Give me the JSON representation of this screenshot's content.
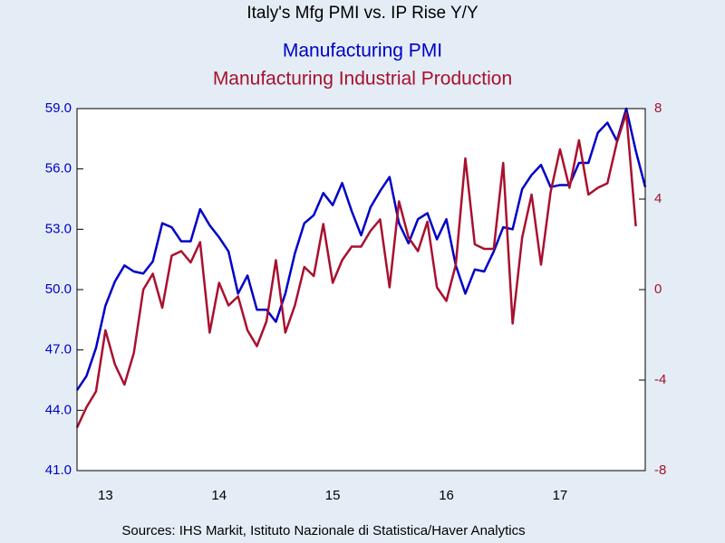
{
  "chart_data": {
    "type": "line",
    "title": "Italy's Mfg PMI vs. IP Rise Y/Y",
    "source": "Sources:  IHS Markit, Istituto Nazionale di Statistica/Haver Analytics",
    "x": [
      2013.25,
      2013.333,
      2013.417,
      2013.5,
      2013.583,
      2013.667,
      2013.75,
      2013.833,
      2013.917,
      2014,
      2014.083,
      2014.167,
      2014.25,
      2014.333,
      2014.417,
      2014.5,
      2014.583,
      2014.667,
      2014.75,
      2014.833,
      2014.917,
      2015,
      2015.083,
      2015.167,
      2015.25,
      2015.333,
      2015.417,
      2015.5,
      2015.583,
      2015.667,
      2015.75,
      2015.833,
      2015.917,
      2016,
      2016.083,
      2016.167,
      2016.25,
      2016.333,
      2016.417,
      2016.5,
      2016.583,
      2016.667,
      2016.75,
      2016.833,
      2016.917,
      2017,
      2017.083,
      2017.167,
      2017.25,
      2017.333,
      2017.417,
      2017.5,
      2017.583,
      2017.667,
      2017.75,
      2017.833,
      2017.917,
      2018,
      2018.083,
      2018.167,
      2018.25
    ],
    "xlim": [
      2013.25,
      2018.25
    ],
    "xticks": [
      {
        "value": 2013.5,
        "label": "13"
      },
      {
        "value": 2014.5,
        "label": "14"
      },
      {
        "value": 2015.5,
        "label": "15"
      },
      {
        "value": 2016.5,
        "label": "16"
      },
      {
        "value": 2017.5,
        "label": "17"
      }
    ],
    "ylim": [
      41,
      59
    ],
    "yticks": [
      {
        "value": 41,
        "label": "41.0"
      },
      {
        "value": 44,
        "label": "44.0"
      },
      {
        "value": 47,
        "label": "47.0"
      },
      {
        "value": 50,
        "label": "50.0"
      },
      {
        "value": 53,
        "label": "53.0"
      },
      {
        "value": 56,
        "label": "56.0"
      },
      {
        "value": 59,
        "label": "59.0"
      }
    ],
    "y2lim": [
      -8,
      8
    ],
    "y2ticks": [
      -8,
      -4,
      0,
      4,
      8
    ],
    "series": [
      {
        "name": "Manufacturing PMI",
        "color": "#0000c8",
        "axis": "y",
        "values": [
          45.0,
          45.7,
          47.1,
          49.2,
          50.4,
          51.2,
          50.9,
          50.8,
          51.4,
          53.3,
          53.1,
          52.4,
          52.4,
          54.0,
          53.2,
          52.6,
          51.9,
          49.8,
          50.7,
          49.0,
          49.0,
          48.4,
          49.8,
          51.8,
          53.3,
          53.7,
          54.8,
          54.2,
          55.3,
          53.9,
          52.7,
          54.1,
          54.9,
          55.6,
          53.3,
          52.3,
          53.5,
          53.8,
          52.5,
          53.5,
          51.2,
          49.8,
          51.0,
          50.9,
          51.9,
          53.1,
          53.0,
          55.0,
          55.7,
          56.2,
          55.1,
          55.2,
          55.2,
          56.3,
          56.3,
          57.8,
          58.3,
          57.4,
          59.0,
          56.9,
          55.1
        ]
      },
      {
        "name": "Manufacturing Industrial Production",
        "color": "#a8102e",
        "axis": "y2",
        "values": [
          -6.1,
          -5.2,
          -4.5,
          -1.8,
          -3.3,
          -4.2,
          -2.8,
          0.0,
          0.7,
          -0.8,
          1.5,
          1.7,
          1.2,
          2.1,
          -1.9,
          0.3,
          -0.7,
          -0.3,
          -1.8,
          -2.5,
          -1.4,
          1.3,
          -1.9,
          -0.7,
          1.0,
          0.6,
          2.9,
          0.3,
          1.3,
          1.9,
          1.9,
          2.6,
          3.1,
          0.1,
          3.9,
          2.3,
          1.7,
          3.0,
          0.1,
          -0.5,
          1.1,
          5.8,
          2.0,
          1.8,
          1.8,
          5.6,
          -1.5,
          2.3,
          4.2,
          1.1,
          4.3,
          6.2,
          4.5,
          6.6,
          4.2,
          4.5,
          4.7,
          6.5,
          7.8,
          2.8,
          null
        ]
      }
    ]
  }
}
